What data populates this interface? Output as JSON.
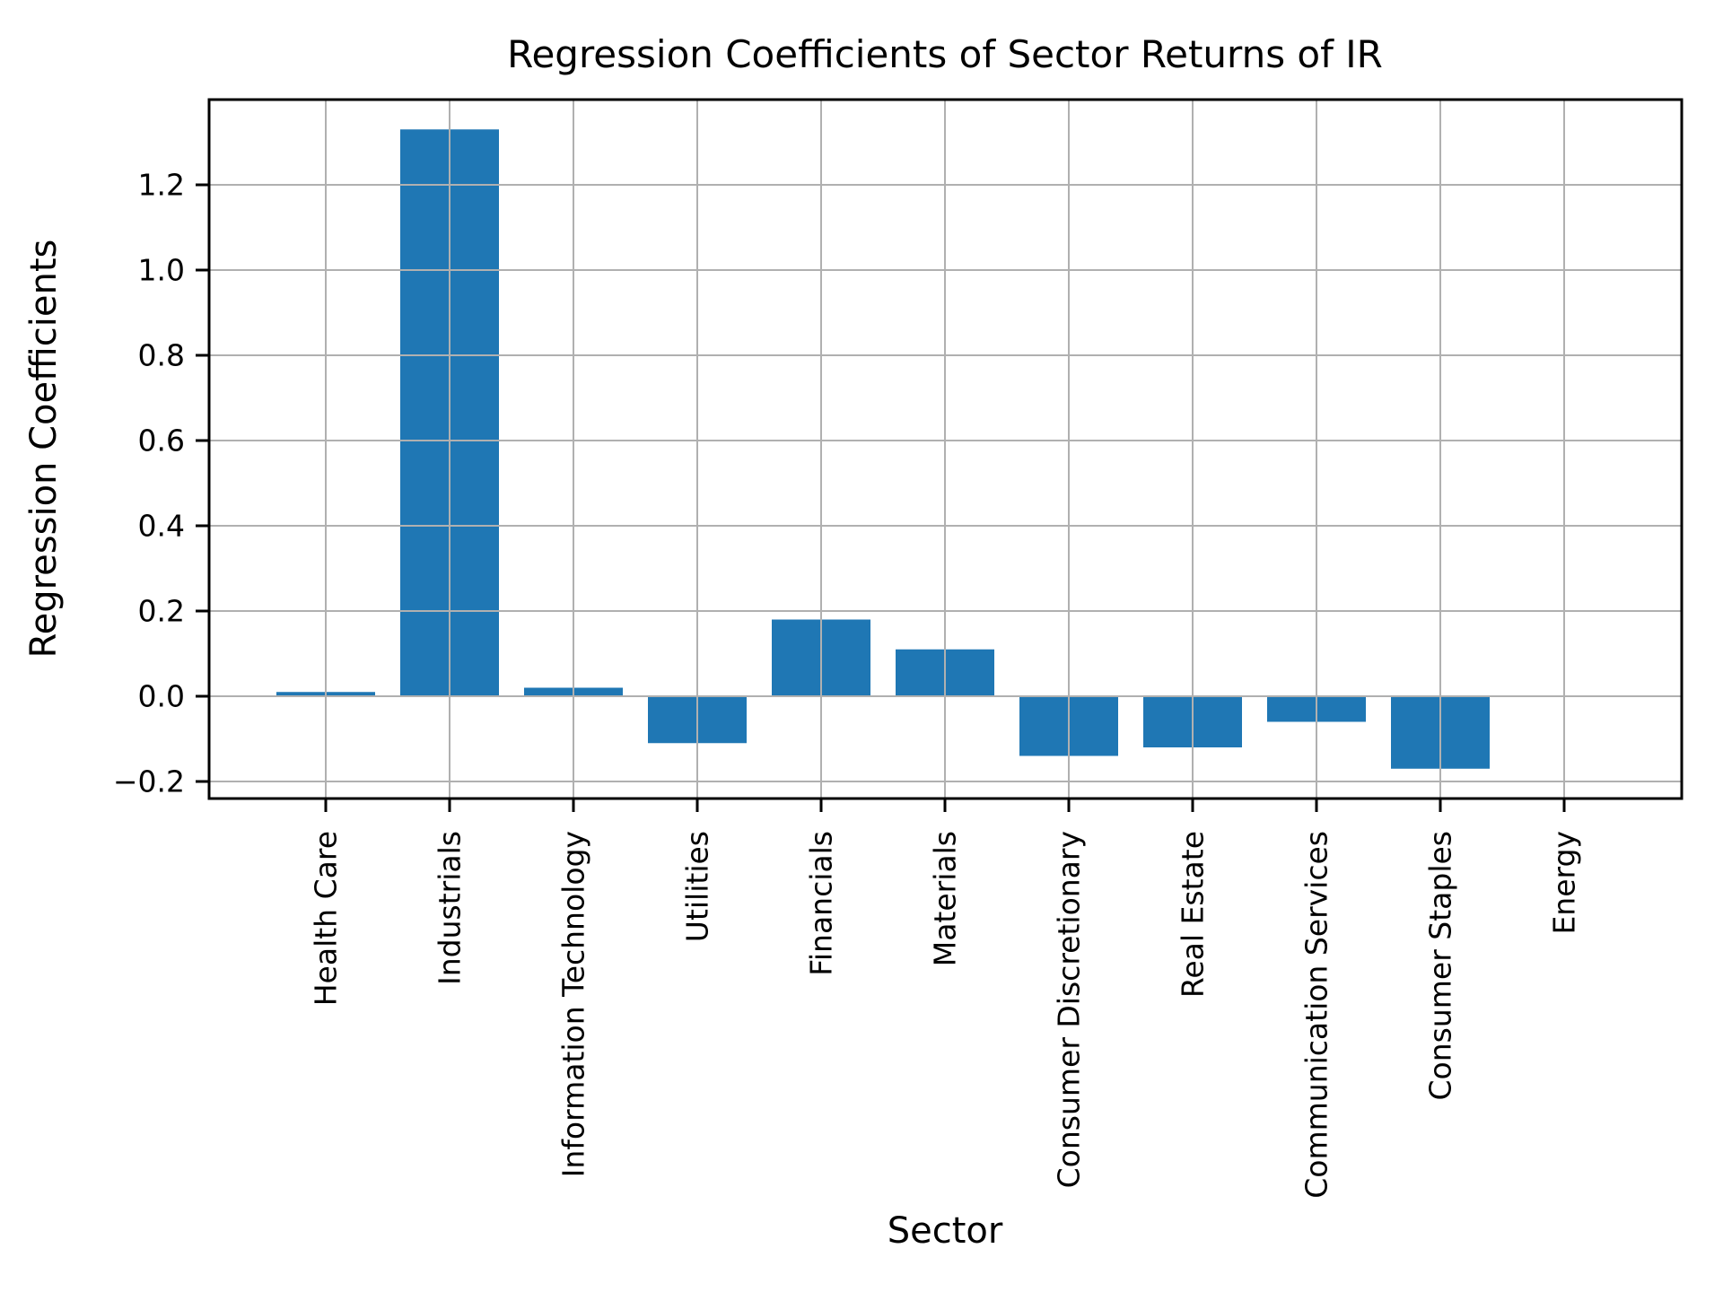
{
  "chart_data": {
    "type": "bar",
    "title": "Regression Coefficients of Sector Returns of IR",
    "xlabel": "Sector",
    "ylabel": "Regression Coefficients",
    "categories": [
      "Health Care",
      "Industrials",
      "Information Technology",
      "Utilities",
      "Financials",
      "Materials",
      "Consumer Discretionary",
      "Real Estate",
      "Communication Services",
      "Consumer Staples",
      "Energy"
    ],
    "values": [
      0.01,
      1.33,
      0.02,
      -0.11,
      0.18,
      0.11,
      -0.14,
      -0.12,
      -0.06,
      -0.17,
      0.0
    ],
    "yticks": [
      -0.2,
      0.0,
      0.2,
      0.4,
      0.6,
      0.8,
      1.0,
      1.2
    ],
    "ylim": [
      -0.24,
      1.4
    ],
    "grid": true,
    "legend": "none",
    "bar_color": "#1f77b4",
    "grid_color": "#b0b0b0",
    "spine_color": "#000000",
    "background": "#ffffff"
  }
}
